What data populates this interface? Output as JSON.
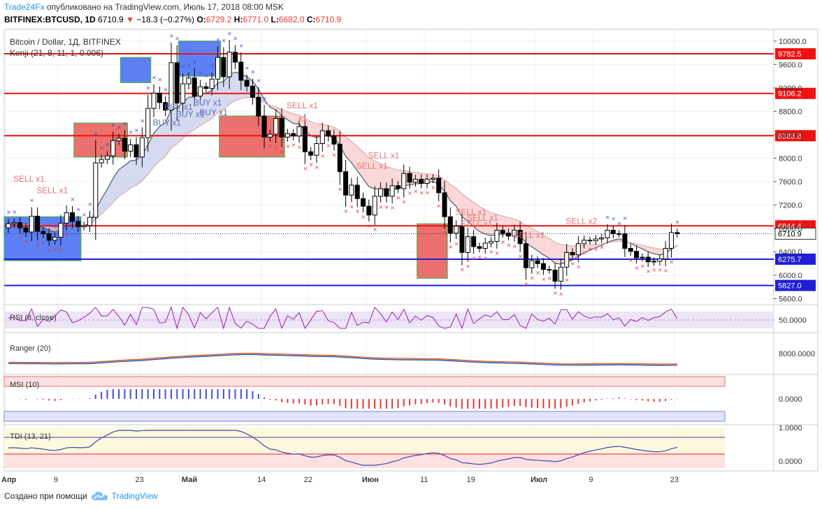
{
  "header": {
    "brand": "Trade24Fx",
    "published": "опубликовано на TradingView.com, Июль 17, 2018 08:00 MSK",
    "symbol": "BITFINEX:BTCUSD, 1D",
    "last": "6710.9",
    "change": "−18.3 (−0.27%)",
    "o_label": "O:",
    "o": "6729.2",
    "h_label": "H:",
    "h": "6771.0",
    "l_label": "L:",
    "l": "6682.0",
    "c_label": "C:",
    "c": "6710.9"
  },
  "footer": {
    "created_with": "Создано при помощи",
    "tradingview": "TradingView"
  },
  "chart_data": {
    "type": "candlestick",
    "title": "Bitcoin / Dollar, 1Д, BITFINEX",
    "indicator_label": "Kenji (21, 8, 11, 1, 0.006)",
    "x_ticks": [
      "Апр",
      "9",
      "23",
      "Май",
      "14",
      "22",
      "Июн",
      "11",
      "19",
      "Июл",
      "9",
      "23"
    ],
    "y_ticks": [
      "10000.0",
      "9600.0",
      "9200.0",
      "8800.0",
      "8400.0",
      "8000.0",
      "7600.0",
      "7200.0",
      "6800.0",
      "6400.0",
      "6000.0",
      "5600.0"
    ],
    "ylim": [
      5500,
      10200
    ],
    "h_levels": [
      {
        "value": 9782.5,
        "label": "9782.5",
        "color": "#ee1111"
      },
      {
        "value": 9106.2,
        "label": "9106.2",
        "color": "#ee1111"
      },
      {
        "value": 8383.8,
        "label": "8383.8",
        "color": "#ee1111"
      },
      {
        "value": 6844.4,
        "label": "6844.4",
        "color": "#ee1111"
      },
      {
        "value": 6275.7,
        "label": "6275.7",
        "color": "#1f1fd6"
      },
      {
        "value": 5827.0,
        "label": "5827.0",
        "color": "#1f1fd6"
      }
    ],
    "last_price": {
      "value": 6710.9,
      "label": "6710.9"
    },
    "candles_close": [
      6880,
      6900,
      6810,
      6740,
      7010,
      6750,
      6710,
      6600,
      6650,
      6890,
      7070,
      6920,
      6830,
      6850,
      6990,
      7920,
      7980,
      8040,
      8300,
      8340,
      8120,
      8230,
      8020,
      8350,
      8850,
      9110,
      8950,
      8820,
      9630,
      8940,
      9270,
      9370,
      9060,
      9220,
      9190,
      9350,
      9720,
      9390,
      9810,
      9640,
      9330,
      9230,
      9040,
      8720,
      8360,
      8410,
      8680,
      8360,
      8420,
      8380,
      8540,
      8110,
      8050,
      8250,
      8470,
      8380,
      8240,
      7770,
      7370,
      7540,
      7310,
      7180,
      7030,
      7350,
      7480,
      7350,
      7530,
      7480,
      7740,
      7590,
      7640,
      7570,
      7640,
      7660,
      7410,
      7000,
      6720,
      6840,
      6390,
      6660,
      6490,
      6460,
      6550,
      6580,
      6770,
      6720,
      6670,
      6770,
      6540,
      6130,
      6250,
      6200,
      6100,
      6090,
      5900,
      6140,
      6390,
      6350,
      6540,
      6600,
      6590,
      6620,
      6640,
      6770,
      6710,
      6710,
      6460,
      6410,
      6300,
      6310,
      6230,
      6240,
      6280,
      6460,
      6730,
      6710
    ],
    "x_start": "2018-03-31",
    "bands": [
      {
        "color": "#1f4ff0",
        "from": "2018-03-31",
        "to": "2018-04-12",
        "top": 7000,
        "bottom": 6250
      },
      {
        "color": "#e53935",
        "from": "2018-04-12",
        "to": "2018-04-20",
        "top": 8600,
        "bottom": 8020
      },
      {
        "color": "#1f4ff0",
        "from": "2018-04-20",
        "to": "2018-04-24",
        "top": 9720,
        "bottom": 9290
      },
      {
        "color": "#1f4ff0",
        "from": "2018-04-30",
        "to": "2018-05-06",
        "top": 10000,
        "bottom": 9400
      },
      {
        "color": "#e53935",
        "from": "2018-05-07",
        "to": "2018-05-17",
        "top": 8720,
        "bottom": 8020
      },
      {
        "color": "#e53935",
        "from": "2018-06-10",
        "to": "2018-06-14",
        "top": 6880,
        "bottom": 5950
      }
    ],
    "signal_labels": [
      {
        "text": "SELL x1",
        "date": "2018-04-03",
        "value": 7600,
        "color": "#e57373"
      },
      {
        "text": "SELL x1",
        "date": "2018-04-07",
        "value": 7400,
        "color": "#e57373"
      },
      {
        "text": "BUY x1",
        "date": "2018-04-27",
        "value": 8560,
        "color": "#5c6bc0"
      },
      {
        "text": "BUY x1",
        "date": "2018-04-29",
        "value": 8830,
        "color": "#5c6bc0"
      },
      {
        "text": "BUY x1",
        "date": "2018-05-01",
        "value": 8700,
        "color": "#5c6bc0"
      },
      {
        "text": "BUY x1",
        "date": "2018-05-04",
        "value": 8900,
        "color": "#5c6bc0"
      },
      {
        "text": "BUY x1",
        "date": "2018-05-05",
        "value": 8730,
        "color": "#5c6bc0"
      },
      {
        "text": "SELL x1",
        "date": "2018-05-20",
        "value": 8850,
        "color": "#e57373"
      },
      {
        "text": "x1",
        "date": "2018-05-22",
        "value": 8630,
        "color": "#e57373"
      },
      {
        "text": "SELL x1",
        "date": "2018-06-03",
        "value": 8000,
        "color": "#e57373"
      },
      {
        "text": "SELL x1",
        "date": "2018-06-01",
        "value": 7820,
        "color": "#e57373"
      },
      {
        "text": "SELL x1",
        "date": "2018-06-18",
        "value": 7030,
        "color": "#e57373"
      },
      {
        "text": "SELL x1",
        "date": "2018-06-20",
        "value": 6930,
        "color": "#e57373"
      },
      {
        "text": "SELL x1",
        "date": "2018-06-19",
        "value": 6830,
        "color": "#e57373"
      },
      {
        "text": "SELL x1",
        "date": "2018-06-28",
        "value": 6640,
        "color": "#e57373"
      },
      {
        "text": "SELL x2",
        "date": "2018-07-07",
        "value": 6880,
        "color": "#e57373"
      }
    ],
    "panels": [
      {
        "name": "rsi",
        "label": "RSI (8, close)",
        "tick": "50.0000"
      },
      {
        "name": "ranger",
        "label": "Ranger (20)",
        "tick": "8000.0000"
      },
      {
        "name": "msi",
        "label": "MSI (10)",
        "tick": "0.0000"
      },
      {
        "name": "tdi",
        "label": "TDI (13, 21)",
        "tick_top": "1.0000",
        "tick_bottom": "0.0000"
      }
    ]
  },
  "colors": {
    "up": "#ffffff",
    "down": "#000000",
    "grid": "#e9edf2",
    "axis": "#555555",
    "band_blue": "#1f4ff0",
    "band_red": "#e53935"
  }
}
